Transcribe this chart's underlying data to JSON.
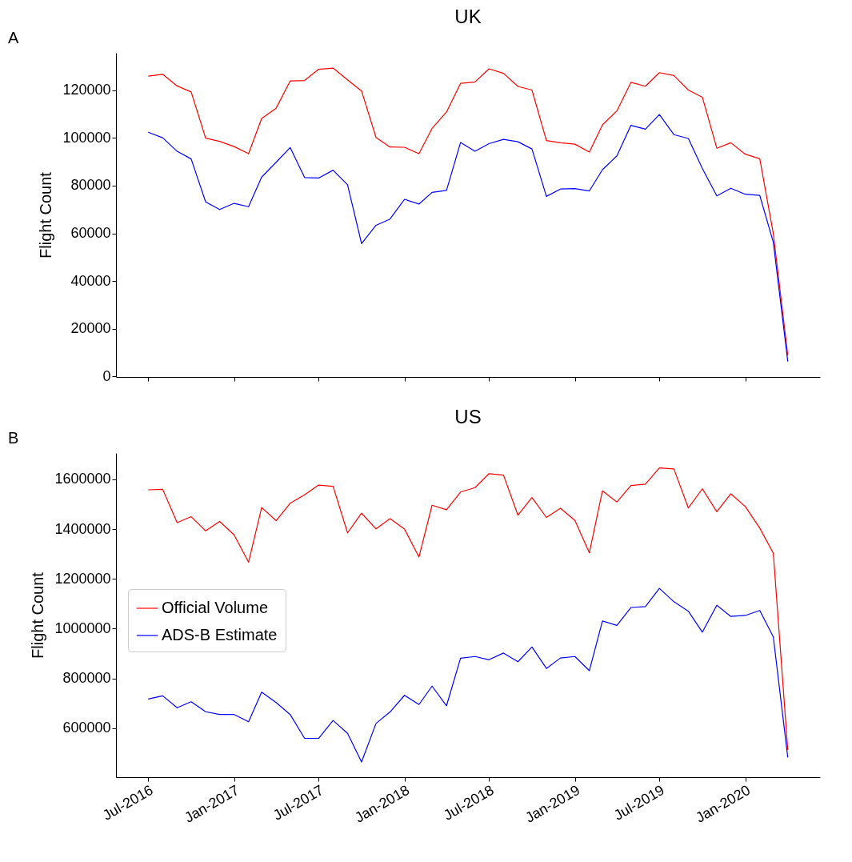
{
  "chart_data": [
    {
      "type": "line",
      "title": "UK",
      "ylabel": "Flight Count",
      "annotations": [
        "A"
      ],
      "x": [
        "2016-07",
        "2016-08",
        "2016-09",
        "2016-10",
        "2016-11",
        "2016-12",
        "2017-01",
        "2017-02",
        "2017-03",
        "2017-04",
        "2017-05",
        "2017-06",
        "2017-07",
        "2017-08",
        "2017-09",
        "2017-10",
        "2017-11",
        "2017-12",
        "2018-01",
        "2018-02",
        "2018-03",
        "2018-04",
        "2018-05",
        "2018-06",
        "2018-07",
        "2018-08",
        "2018-09",
        "2018-10",
        "2018-11",
        "2018-12",
        "2019-01",
        "2019-02",
        "2019-03",
        "2019-04",
        "2019-05",
        "2019-06",
        "2019-07",
        "2019-08",
        "2019-09",
        "2019-10",
        "2019-11",
        "2019-12",
        "2020-01",
        "2020-02",
        "2020-03",
        "2020-04"
      ],
      "series": [
        {
          "color": "#ff0000",
          "values": [
            125900,
            126700,
            121800,
            119300,
            99900,
            98600,
            96400,
            93400,
            108200,
            112500,
            123900,
            124100,
            128800,
            129300,
            124400,
            119700,
            100200,
            96200,
            96100,
            93400,
            104000,
            110900,
            122900,
            123500,
            129000,
            127100,
            121600,
            120100,
            98900,
            98000,
            97400,
            94100,
            105500,
            111400,
            123300,
            121700,
            127400,
            126200,
            120100,
            117100,
            95700,
            98000,
            93200,
            91300,
            59900,
            8900
          ]
        },
        {
          "color": "#0000ff",
          "values": [
            102400,
            100100,
            94400,
            91200,
            73200,
            70000,
            72600,
            71200,
            83600,
            89800,
            96000,
            83400,
            83200,
            86500,
            80400,
            55700,
            63400,
            66000,
            74300,
            72300,
            77200,
            78000,
            98100,
            94400,
            97600,
            99400,
            98400,
            95400,
            75500,
            78600,
            78800,
            77800,
            86700,
            92500,
            105300,
            103700,
            109800,
            101400,
            99800,
            87200,
            75700,
            78900,
            76400,
            75900,
            56300,
            6300
          ]
        }
      ],
      "xlim": [
        "2016-04-23",
        "2020-06-09"
      ],
      "xticks": [
        {
          "value": "2016-07",
          "label": null
        },
        {
          "value": "2017-01",
          "label": null
        },
        {
          "value": "2017-07",
          "label": null
        },
        {
          "value": "2018-01",
          "label": null
        },
        {
          "value": "2018-07",
          "label": null
        },
        {
          "value": "2019-01",
          "label": null
        },
        {
          "value": "2019-07",
          "label": null
        },
        {
          "value": "2020-01",
          "label": null
        }
      ],
      "ylim": [
        -200,
        135700
      ],
      "yticks": [
        0,
        20000,
        40000,
        60000,
        80000,
        100000,
        120000
      ],
      "tick_labels": "y",
      "grid": false,
      "legend": false
    },
    {
      "type": "line",
      "title": "US",
      "ylabel": "Flight Count",
      "annotations": [
        "B"
      ],
      "x": [
        "2016-07",
        "2016-08",
        "2016-09",
        "2016-10",
        "2016-11",
        "2016-12",
        "2017-01",
        "2017-02",
        "2017-03",
        "2017-04",
        "2017-05",
        "2017-06",
        "2017-07",
        "2017-08",
        "2017-09",
        "2017-10",
        "2017-11",
        "2017-12",
        "2018-01",
        "2018-02",
        "2018-03",
        "2018-04",
        "2018-05",
        "2018-06",
        "2018-07",
        "2018-08",
        "2018-09",
        "2018-10",
        "2018-11",
        "2018-12",
        "2019-01",
        "2019-02",
        "2019-03",
        "2019-04",
        "2019-05",
        "2019-06",
        "2019-07",
        "2019-08",
        "2019-09",
        "2019-10",
        "2019-11",
        "2019-12",
        "2020-01",
        "2020-02",
        "2020-03",
        "2020-04"
      ],
      "series": [
        {
          "name": "Official Volume",
          "color": "#ff0000",
          "values": [
            1558000,
            1560000,
            1426000,
            1450000,
            1393000,
            1431000,
            1377000,
            1267000,
            1487000,
            1434000,
            1504000,
            1538000,
            1577000,
            1572000,
            1385000,
            1464000,
            1401000,
            1442000,
            1400000,
            1288000,
            1496000,
            1478000,
            1549000,
            1567000,
            1623000,
            1617000,
            1456000,
            1527000,
            1447000,
            1484000,
            1435000,
            1305000,
            1554000,
            1509000,
            1575000,
            1581000,
            1646000,
            1642000,
            1485000,
            1562000,
            1470000,
            1542000,
            1491000,
            1404000,
            1303000,
            512000
          ]
        },
        {
          "name": "ADS-B Estimate",
          "color": "#0000ff",
          "values": [
            717000,
            730000,
            682000,
            706000,
            666000,
            655000,
            655000,
            626000,
            745000,
            703000,
            655000,
            559000,
            559000,
            631000,
            579000,
            464000,
            619000,
            665000,
            732000,
            695000,
            769000,
            690000,
            881000,
            888000,
            875000,
            902000,
            867000,
            926000,
            840000,
            882000,
            888000,
            831000,
            1031000,
            1013000,
            1085000,
            1089000,
            1162000,
            1108000,
            1070000,
            986000,
            1094000,
            1049000,
            1053000,
            1073000,
            967000,
            482000
          ]
        }
      ],
      "xlim": [
        "2016-04-23",
        "2020-06-09"
      ],
      "xticks": [
        {
          "value": "2016-07",
          "label": "Jul-2016"
        },
        {
          "value": "2017-01",
          "label": "Jan-2017"
        },
        {
          "value": "2017-07",
          "label": "Jul-2017"
        },
        {
          "value": "2018-01",
          "label": "Jan-2018"
        },
        {
          "value": "2018-07",
          "label": "Jul-2018"
        },
        {
          "value": "2019-01",
          "label": "Jan-2019"
        },
        {
          "value": "2019-07",
          "label": "Jul-2019"
        },
        {
          "value": "2020-01",
          "label": "Jan-2020"
        }
      ],
      "ylim": [
        403000,
        1706000
      ],
      "yticks": [
        600000,
        800000,
        1000000,
        1200000,
        1400000,
        1600000
      ],
      "grid": false,
      "legend": "left"
    }
  ]
}
